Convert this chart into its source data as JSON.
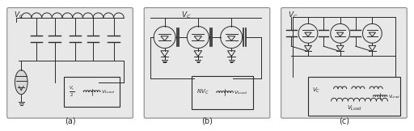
{
  "bg_color": "#e8e8e8",
  "line_color": "#2a2a2a",
  "lw": 0.7,
  "fig_width": 5.12,
  "fig_height": 1.62,
  "dpi": 100,
  "label_a": "(a)",
  "label_b": "(b)",
  "label_c": "(c)"
}
